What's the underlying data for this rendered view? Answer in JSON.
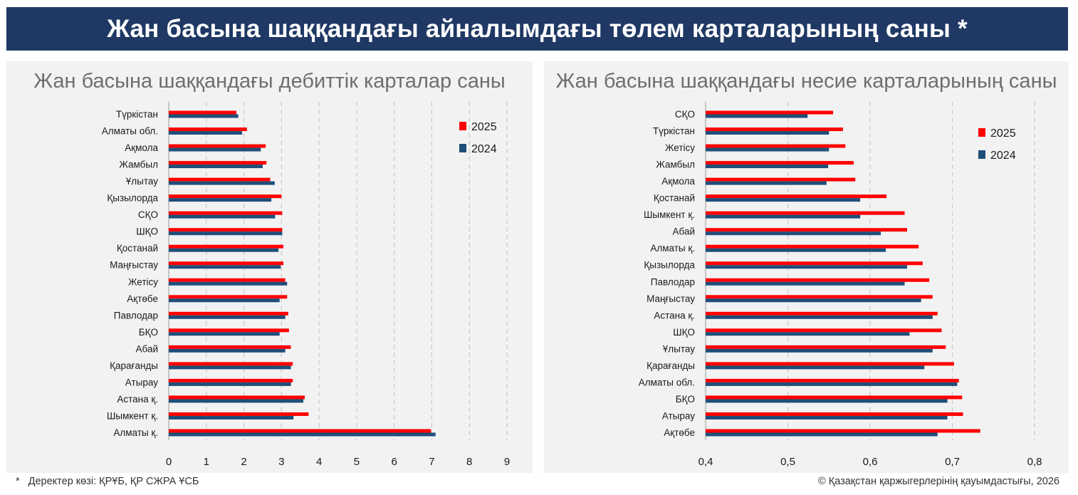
{
  "header": {
    "title": "Жан басына шаққандағы айналымдағы төлем карталарының саны *"
  },
  "footer": {
    "note_mark": "*",
    "source": "Деректер көзі: ҚРҰБ, ҚР СЖРА ҰСБ",
    "copyright": "© Қазақстан қаржыгерлерінің қауымдастығы, 2026"
  },
  "colors": {
    "series_2025": "#ff0000",
    "series_2024": "#1f4e79",
    "banner": "#1f3864"
  },
  "chart_data": [
    {
      "type": "bar",
      "orientation": "horizontal",
      "title": "Жан басына шаққандағы дебиттік карталар саны",
      "xlabel": "",
      "ylabel": "",
      "xlim": [
        0,
        9
      ],
      "ticks": [
        "0",
        "1",
        "2",
        "3",
        "4",
        "5",
        "6",
        "7",
        "8",
        "9"
      ],
      "grid": "vertical dashed",
      "legend_position": "top-right",
      "categories": [
        "Түркістан",
        "Алматы обл.",
        "Ақмола",
        "Жамбыл",
        "Ұлытау",
        "Қызылорда",
        "СҚО",
        "ШҚО",
        "Қостанай",
        "Маңғыстау",
        "Жетісу",
        "Ақтөбе",
        "Павлодар",
        "БҚО",
        "Абай",
        "Қарағанды",
        "Атырау",
        "Астана қ.",
        "Шымкент қ.",
        "Алматы қ."
      ],
      "series": [
        {
          "name": "2025",
          "values": [
            1.8,
            2.08,
            2.58,
            2.6,
            2.7,
            3.0,
            3.02,
            3.02,
            3.05,
            3.05,
            3.1,
            3.15,
            3.18,
            3.2,
            3.25,
            3.3,
            3.3,
            3.62,
            3.72,
            6.98
          ]
        },
        {
          "name": "2024",
          "values": [
            1.85,
            1.95,
            2.45,
            2.5,
            2.82,
            2.73,
            2.83,
            3.02,
            2.92,
            2.98,
            3.15,
            2.95,
            3.1,
            2.95,
            3.1,
            3.25,
            3.25,
            3.58,
            3.32,
            7.1
          ]
        }
      ]
    },
    {
      "type": "bar",
      "orientation": "horizontal",
      "title": "Жан басына шаққандағы несие карталарының саны",
      "xlabel": "",
      "ylabel": "",
      "xlim": [
        0.4,
        0.8
      ],
      "ticks": [
        "0,4",
        "0,5",
        "0,6",
        "0,7",
        "0,8"
      ],
      "grid": "vertical dashed",
      "legend_position": "top-right",
      "categories": [
        "СҚО",
        "Түркістан",
        "Жетісу",
        "Жамбыл",
        "Ақмола",
        "Қостанай",
        "Шымкент қ.",
        "Абай",
        "Алматы қ.",
        "Қызылорда",
        "Павлодар",
        "Маңғыстау",
        "Астана қ.",
        "ШҚО",
        "Ұлытау",
        "Қарағанды",
        "Алматы обл.",
        "БҚО",
        "Атырау",
        "Ақтөбе"
      ],
      "series": [
        {
          "name": "2025",
          "values": [
            0.555,
            0.567,
            0.57,
            0.58,
            0.582,
            0.62,
            0.642,
            0.645,
            0.659,
            0.664,
            0.672,
            0.676,
            0.682,
            0.687,
            0.692,
            0.702,
            0.708,
            0.712,
            0.713,
            0.734
          ]
        },
        {
          "name": "2024",
          "values": [
            0.524,
            0.55,
            0.55,
            0.549,
            0.547,
            0.588,
            0.588,
            0.613,
            0.619,
            0.645,
            0.642,
            0.662,
            0.676,
            0.648,
            0.676,
            0.666,
            0.706,
            0.694,
            0.694,
            0.682
          ]
        }
      ]
    }
  ]
}
